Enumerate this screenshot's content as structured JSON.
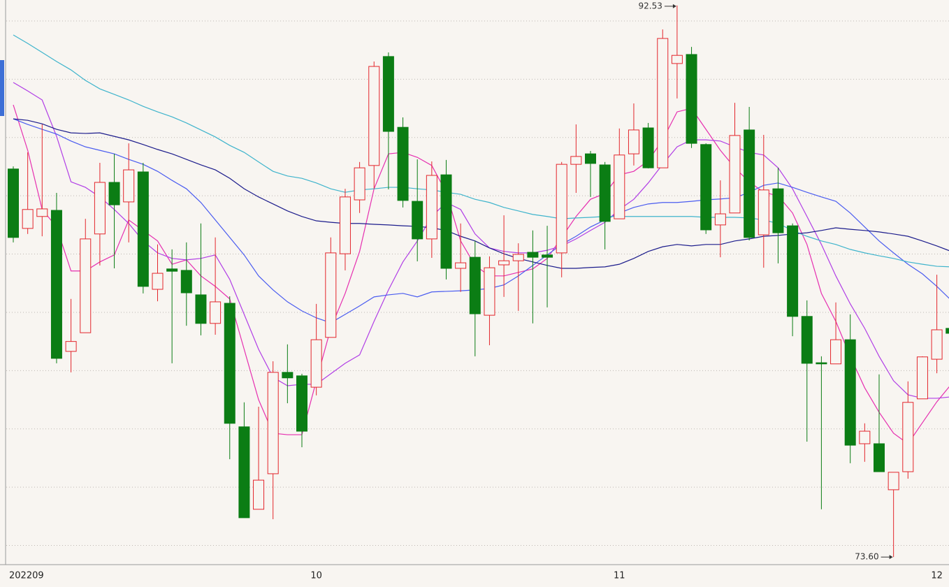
{
  "chart_data": {
    "type": "candlestick",
    "categories": [
      "202209",
      null,
      null,
      null,
      null,
      null,
      null,
      null,
      null,
      null,
      null,
      null,
      null,
      null,
      null,
      null,
      null,
      null,
      null,
      null,
      null,
      "10",
      null,
      null,
      null,
      null,
      null,
      null,
      null,
      null,
      null,
      null,
      null,
      null,
      null,
      null,
      null,
      null,
      null,
      null,
      null,
      null,
      "11",
      null,
      null,
      null,
      null,
      null,
      null,
      null,
      null,
      null,
      null,
      null,
      null,
      null,
      null,
      null,
      null,
      null,
      null,
      null,
      null,
      null,
      "12",
      null
    ],
    "open": [
      86.92,
      84.88,
      85.29,
      85.5,
      80.66,
      81.3,
      84.69,
      86.46,
      85.79,
      86.82,
      82.79,
      83.49,
      83.44,
      82.6,
      81.62,
      82.31,
      78.07,
      75.24,
      76.46,
      79.94,
      79.82,
      79.43,
      81.14,
      84.01,
      85.86,
      87.04,
      90.78,
      88.35,
      85.81,
      84.52,
      86.72,
      83.51,
      83.89,
      81.9,
      83.63,
      83.77,
      84.06,
      83.97,
      84.04,
      87.08,
      87.44,
      87.06,
      85.21,
      87.44,
      88.33,
      86.96,
      90.54,
      90.85,
      87.76,
      85.0,
      85.41,
      88.26,
      84.66,
      86.24,
      84.97,
      81.86,
      80.27,
      80.23,
      81.06,
      77.49,
      77.49,
      75.91,
      76.53,
      79.03,
      80.39,
      81.45
    ],
    "high": [
      87.01,
      87.49,
      88.45,
      86.1,
      82.46,
      85.21,
      87.13,
      87.44,
      87.8,
      87.13,
      84.33,
      84.16,
      84.4,
      85.05,
      84.57,
      82.55,
      78.91,
      78.76,
      80.32,
      80.9,
      79.89,
      82.29,
      84.57,
      86.24,
      87.16,
      90.61,
      90.92,
      88.69,
      87.25,
      87.18,
      87.23,
      85.05,
      84.45,
      83.92,
      85.33,
      84.37,
      84.81,
      84.97,
      87.16,
      88.45,
      87.54,
      87.16,
      88.31,
      89.17,
      88.5,
      91.71,
      92.53,
      91.11,
      87.8,
      86.53,
      89.19,
      89.05,
      88.09,
      86.96,
      85.05,
      82.41,
      80.49,
      82.34,
      81.93,
      78.19,
      79.87,
      76.51,
      79.63,
      80.49,
      83.29,
      81.57
    ],
    "low": [
      84.4,
      84.69,
      84.61,
      80.25,
      79.94,
      81.3,
      83.61,
      83.51,
      84.4,
      82.65,
      82.38,
      80.25,
      81.54,
      81.21,
      81.23,
      76.96,
      74.95,
      75.24,
      74.9,
      78.88,
      77.37,
      79.15,
      81.14,
      83.44,
      85.41,
      86.24,
      86.22,
      85.6,
      83.75,
      83.87,
      83.13,
      82.7,
      80.49,
      80.87,
      82.53,
      82.05,
      81.62,
      82.17,
      83.2,
      86.1,
      85.96,
      84.16,
      85.21,
      87.04,
      86.94,
      86.96,
      89.34,
      87.64,
      84.69,
      83.89,
      85.41,
      84.47,
      83.53,
      83.68,
      81.18,
      77.56,
      75.24,
      80.23,
      76.82,
      76.87,
      76.53,
      73.6,
      76.29,
      79.03,
      79.91,
      81.21
    ],
    "close": [
      84.57,
      85.53,
      85.55,
      80.42,
      81.0,
      84.52,
      86.46,
      85.69,
      86.89,
      82.89,
      83.34,
      83.41,
      82.67,
      81.62,
      82.36,
      78.19,
      74.95,
      76.24,
      79.94,
      79.75,
      77.92,
      81.06,
      84.04,
      85.96,
      86.96,
      90.44,
      88.21,
      85.84,
      84.52,
      86.7,
      83.51,
      83.7,
      81.95,
      83.53,
      83.77,
      83.99,
      83.89,
      83.89,
      87.08,
      87.35,
      87.11,
      85.12,
      87.4,
      88.26,
      86.96,
      91.4,
      90.82,
      87.8,
      84.83,
      85.38,
      88.07,
      84.57,
      86.2,
      84.73,
      81.86,
      80.25,
      80.23,
      81.06,
      77.44,
      77.92,
      76.53,
      76.51,
      78.91,
      80.47,
      81.4,
      81.28
    ],
    "up_color": "#e3262c",
    "down_color": "#0b7d14",
    "series": [
      {
        "color": "#e62fb0",
        "values": [
          89.12,
          87.56,
          85.53,
          84.93,
          83.42,
          83.42,
          83.73,
          83.97,
          85.17,
          84.81,
          84.45,
          83.65,
          83.8,
          83.25,
          82.89,
          82.46,
          80.73,
          79.0,
          77.85,
          77.8,
          77.8,
          79.65,
          81.45,
          82.65,
          84.09,
          86.24,
          87.44,
          87.49,
          87.32,
          87.04,
          86.12,
          84.45,
          83.61,
          83.25,
          83.25,
          83.37,
          83.49,
          83.85,
          84.57,
          85.29,
          85.88,
          86.08,
          86.72,
          86.84,
          87.2,
          87.92,
          88.88,
          89.0,
          88.28,
          87.56,
          86.96,
          86.48,
          86.12,
          86.0,
          85.41,
          84.33,
          82.65,
          81.69,
          80.49,
          79.41,
          78.57,
          77.85,
          77.49,
          78.21,
          78.93,
          79.53
        ]
      },
      {
        "color": "#b13ee6",
        "values": [
          89.89,
          89.6,
          89.29,
          88.04,
          86.48,
          86.29,
          85.96,
          85.53,
          85.05,
          84.45,
          84.04,
          83.85,
          83.8,
          83.85,
          83.97,
          83.13,
          81.93,
          80.73,
          79.77,
          79.48,
          79.53,
          79.53,
          79.89,
          80.25,
          80.54,
          81.69,
          82.77,
          83.73,
          84.45,
          85.29,
          85.77,
          85.53,
          84.69,
          84.21,
          84.09,
          84.04,
          84.04,
          84.13,
          84.28,
          84.52,
          84.81,
          85.09,
          85.53,
          85.88,
          86.44,
          87.08,
          87.68,
          87.92,
          87.92,
          87.88,
          87.68,
          87.49,
          87.4,
          86.96,
          86.24,
          85.29,
          84.33,
          83.25,
          82.29,
          81.45,
          80.49,
          79.65,
          79.17,
          79.05,
          79.05,
          79.1
        ]
      },
      {
        "color": "#4a5cf0",
        "values": [
          88.64,
          88.45,
          88.28,
          88.12,
          87.88,
          87.68,
          87.56,
          87.44,
          87.25,
          87.08,
          86.84,
          86.53,
          86.24,
          85.77,
          85.17,
          84.57,
          83.97,
          83.25,
          82.77,
          82.36,
          82.05,
          81.81,
          81.64,
          81.93,
          82.22,
          82.53,
          82.6,
          82.65,
          82.53,
          82.7,
          82.72,
          82.74,
          82.77,
          82.82,
          82.94,
          83.25,
          83.61,
          83.97,
          84.33,
          84.61,
          84.93,
          85.17,
          85.41,
          85.6,
          85.72,
          85.77,
          85.77,
          85.81,
          85.86,
          85.89,
          85.93,
          86.12,
          86.36,
          86.44,
          86.29,
          86.12,
          85.96,
          85.81,
          85.41,
          84.93,
          84.45,
          84.04,
          83.65,
          83.32,
          82.89,
          82.41
        ]
      },
      {
        "color": "#3fb4cc",
        "values": [
          91.52,
          91.23,
          90.92,
          90.61,
          90.32,
          89.96,
          89.67,
          89.48,
          89.29,
          89.07,
          88.88,
          88.71,
          88.5,
          88.26,
          88.02,
          87.73,
          87.49,
          87.16,
          86.84,
          86.68,
          86.6,
          86.44,
          86.24,
          86.12,
          86.2,
          86.24,
          86.29,
          86.29,
          86.24,
          86.2,
          86.12,
          86.05,
          85.88,
          85.77,
          85.6,
          85.48,
          85.36,
          85.29,
          85.21,
          85.24,
          85.26,
          85.29,
          85.29,
          85.29,
          85.29,
          85.29,
          85.29,
          85.29,
          85.26,
          85.26,
          85.26,
          85.24,
          85.17,
          85.05,
          84.81,
          84.61,
          84.45,
          84.33,
          84.16,
          84.04,
          83.94,
          83.85,
          83.73,
          83.65,
          83.58,
          83.56
        ]
      },
      {
        "color": "#1c1c8c",
        "values": [
          88.64,
          88.59,
          88.47,
          88.28,
          88.16,
          88.14,
          88.16,
          88.04,
          87.92,
          87.76,
          87.59,
          87.44,
          87.25,
          87.06,
          86.89,
          86.6,
          86.24,
          85.96,
          85.72,
          85.48,
          85.29,
          85.14,
          85.09,
          85.05,
          85.05,
          85.02,
          85.0,
          84.97,
          84.95,
          84.9,
          84.81,
          84.61,
          84.45,
          84.21,
          84.01,
          83.85,
          83.73,
          83.61,
          83.51,
          83.51,
          83.54,
          83.56,
          83.65,
          83.85,
          84.09,
          84.25,
          84.33,
          84.28,
          84.33,
          84.33,
          84.45,
          84.52,
          84.61,
          84.64,
          84.69,
          84.73,
          84.81,
          84.9,
          84.85,
          84.81,
          84.76,
          84.69,
          84.61,
          84.45,
          84.28,
          84.09
        ]
      }
    ],
    "high_label": "92.53",
    "low_label": "73.60",
    "ylim": [
      73.34,
      92.72
    ],
    "yticks": [
      74,
      76,
      78,
      80,
      82,
      84,
      86,
      88,
      90,
      92
    ],
    "grid": true
  }
}
